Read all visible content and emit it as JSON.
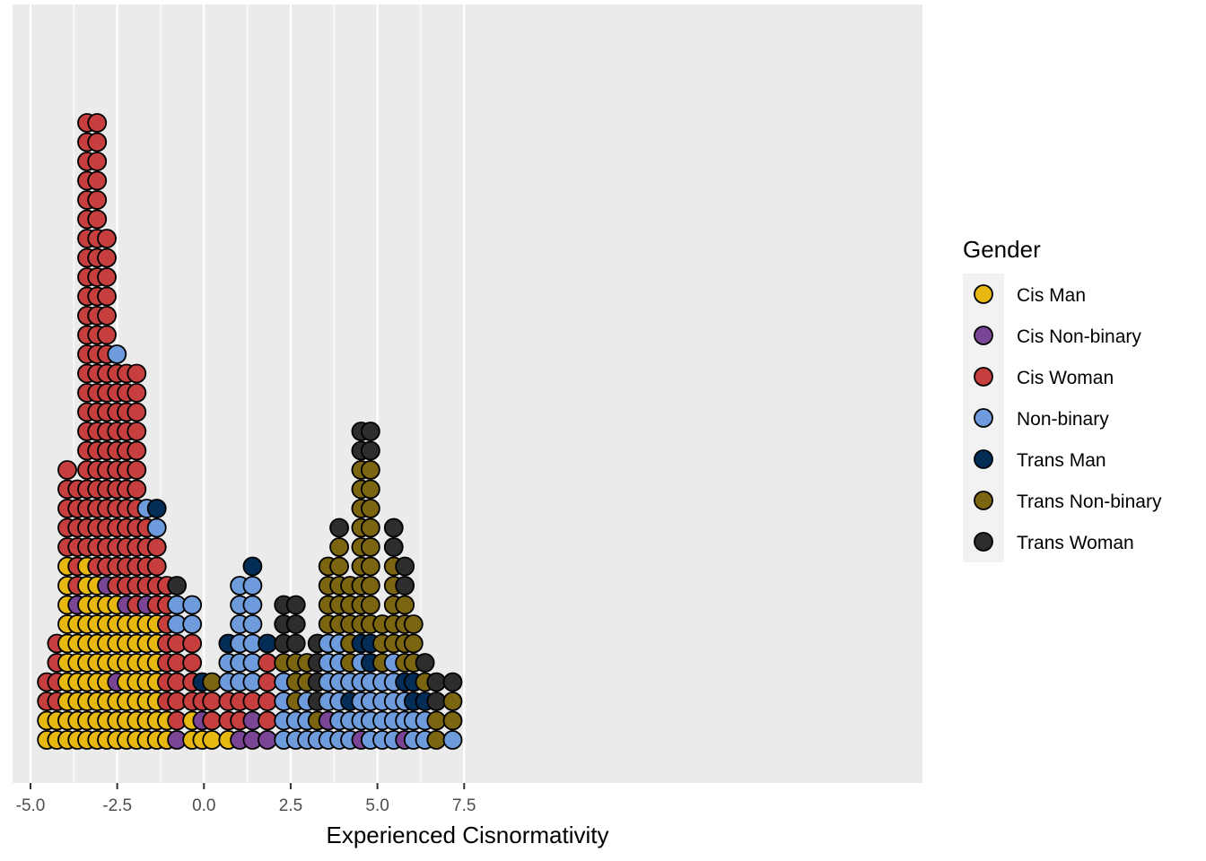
{
  "chart_data": {
    "type": "scatter",
    "subtype": "dotplot",
    "xlabel": "Experienced Cisnormativity",
    "ylabel": "",
    "xlim": [
      -5.1,
      8.2
    ],
    "ticks": [
      -5.0,
      -2.5,
      0.0,
      2.5,
      5.0,
      7.5
    ],
    "tick_labels": [
      "-5.0",
      "-2.5",
      "0.0",
      "2.5",
      "5.0",
      "7.5"
    ],
    "grid": true,
    "legend": {
      "title": "Gender",
      "position": "right",
      "entries": [
        {
          "label": "Cis Man",
          "color": "#E7B80F"
        },
        {
          "label": "Cis Non-binary",
          "color": "#7B4596"
        },
        {
          "label": "Cis Woman",
          "color": "#C63F3E"
        },
        {
          "label": "Non-binary",
          "color": "#6E9BDB"
        },
        {
          "label": "Trans Man",
          "color": "#032D57"
        },
        {
          "label": "Trans Non-binary",
          "color": "#7B6510"
        },
        {
          "label": "Trans Woman",
          "color": "#2D2D2D"
        }
      ]
    },
    "stack_codes": {
      "M": "Cis Man",
      "C": "Cis Non-binary",
      "W": "Cis Woman",
      "N": "Non-binary",
      "T": "Trans Man",
      "B": "Trans Non-binary",
      "X": "Trans Woman"
    },
    "stacks": [
      {
        "x": -4.53,
        "dots": "MMWW"
      },
      {
        "x": -4.24,
        "dots": "MMWWWW"
      },
      {
        "x": -3.94,
        "dots": "MMMMMMMMMMWWWWW"
      },
      {
        "x": -3.65,
        "dots": "MMMMMMMCWWWWWW"
      },
      {
        "x": -3.37,
        "dots": "MMMMMMMMMMWWWWWWWWWWWWWWWWWWWWWWW"
      },
      {
        "x": -3.08,
        "dots": "MMMMMMMMMWWWWWWWWWWWWWWWWWWWWWWWW"
      },
      {
        "x": -2.8,
        "dots": "MMMMMMMMCWWWWWWWWWWWWWWWWWW"
      },
      {
        "x": -2.51,
        "dots": "MMMCMMMMWWWWWWWWWWWWN"
      },
      {
        "x": -2.23,
        "dots": "MMMMMMMCWWWWWWWWWWWW"
      },
      {
        "x": -1.94,
        "dots": "MMMMMMMWWWWWWWWWWWWW"
      },
      {
        "x": -1.65,
        "dots": "MMMMMMMCWWWWN"
      },
      {
        "x": -1.36,
        "dots": "MMMMMMMWWWWNT"
      },
      {
        "x": -1.07,
        "dots": "MMWWWWWWW"
      },
      {
        "x": -0.78,
        "dots": "CWWWWWNNX"
      },
      {
        "x": -0.34,
        "dots": "MMWWWWNN"
      },
      {
        "x": -0.05,
        "dots": "MCWT"
      },
      {
        "x": 0.23,
        "dots": "MWWB"
      },
      {
        "x": 0.7,
        "dots": "MWWNNT"
      },
      {
        "x": 1.03,
        "dots": "CWWNNNNNN"
      },
      {
        "x": 1.4,
        "dots": "CCWNNNNNNT"
      },
      {
        "x": 1.83,
        "dots": "CWWWWT"
      },
      {
        "x": 2.3,
        "dots": "NNNNBXXX"
      },
      {
        "x": 2.65,
        "dots": "NNBBBXXX"
      },
      {
        "x": 2.97,
        "dots": "NNNBB"
      },
      {
        "x": 3.27,
        "dots": "NBXXXX"
      },
      {
        "x": 3.58,
        "dots": "NCNNNNBBBB"
      },
      {
        "x": 3.9,
        "dots": "NNNNNNBBBBBX"
      },
      {
        "x": 4.21,
        "dots": "NNTNBBBBB"
      },
      {
        "x": 4.53,
        "dots": "CNNNNTBBBBBBBBBXX"
      },
      {
        "x": 4.8,
        "dots": "NNNNTTBBBBBBBBBXX"
      },
      {
        "x": 5.14,
        "dots": "NNNNBBB"
      },
      {
        "x": 5.47,
        "dots": "NNNNNBBBBBXX"
      },
      {
        "x": 5.79,
        "dots": "CNNTBBBBXX"
      },
      {
        "x": 6.04,
        "dots": "NNTTBBB"
      },
      {
        "x": 6.37,
        "dots": "NNTBX"
      },
      {
        "x": 6.7,
        "dots": "BBXX"
      },
      {
        "x": 7.17,
        "dots": "NBBX"
      }
    ]
  }
}
